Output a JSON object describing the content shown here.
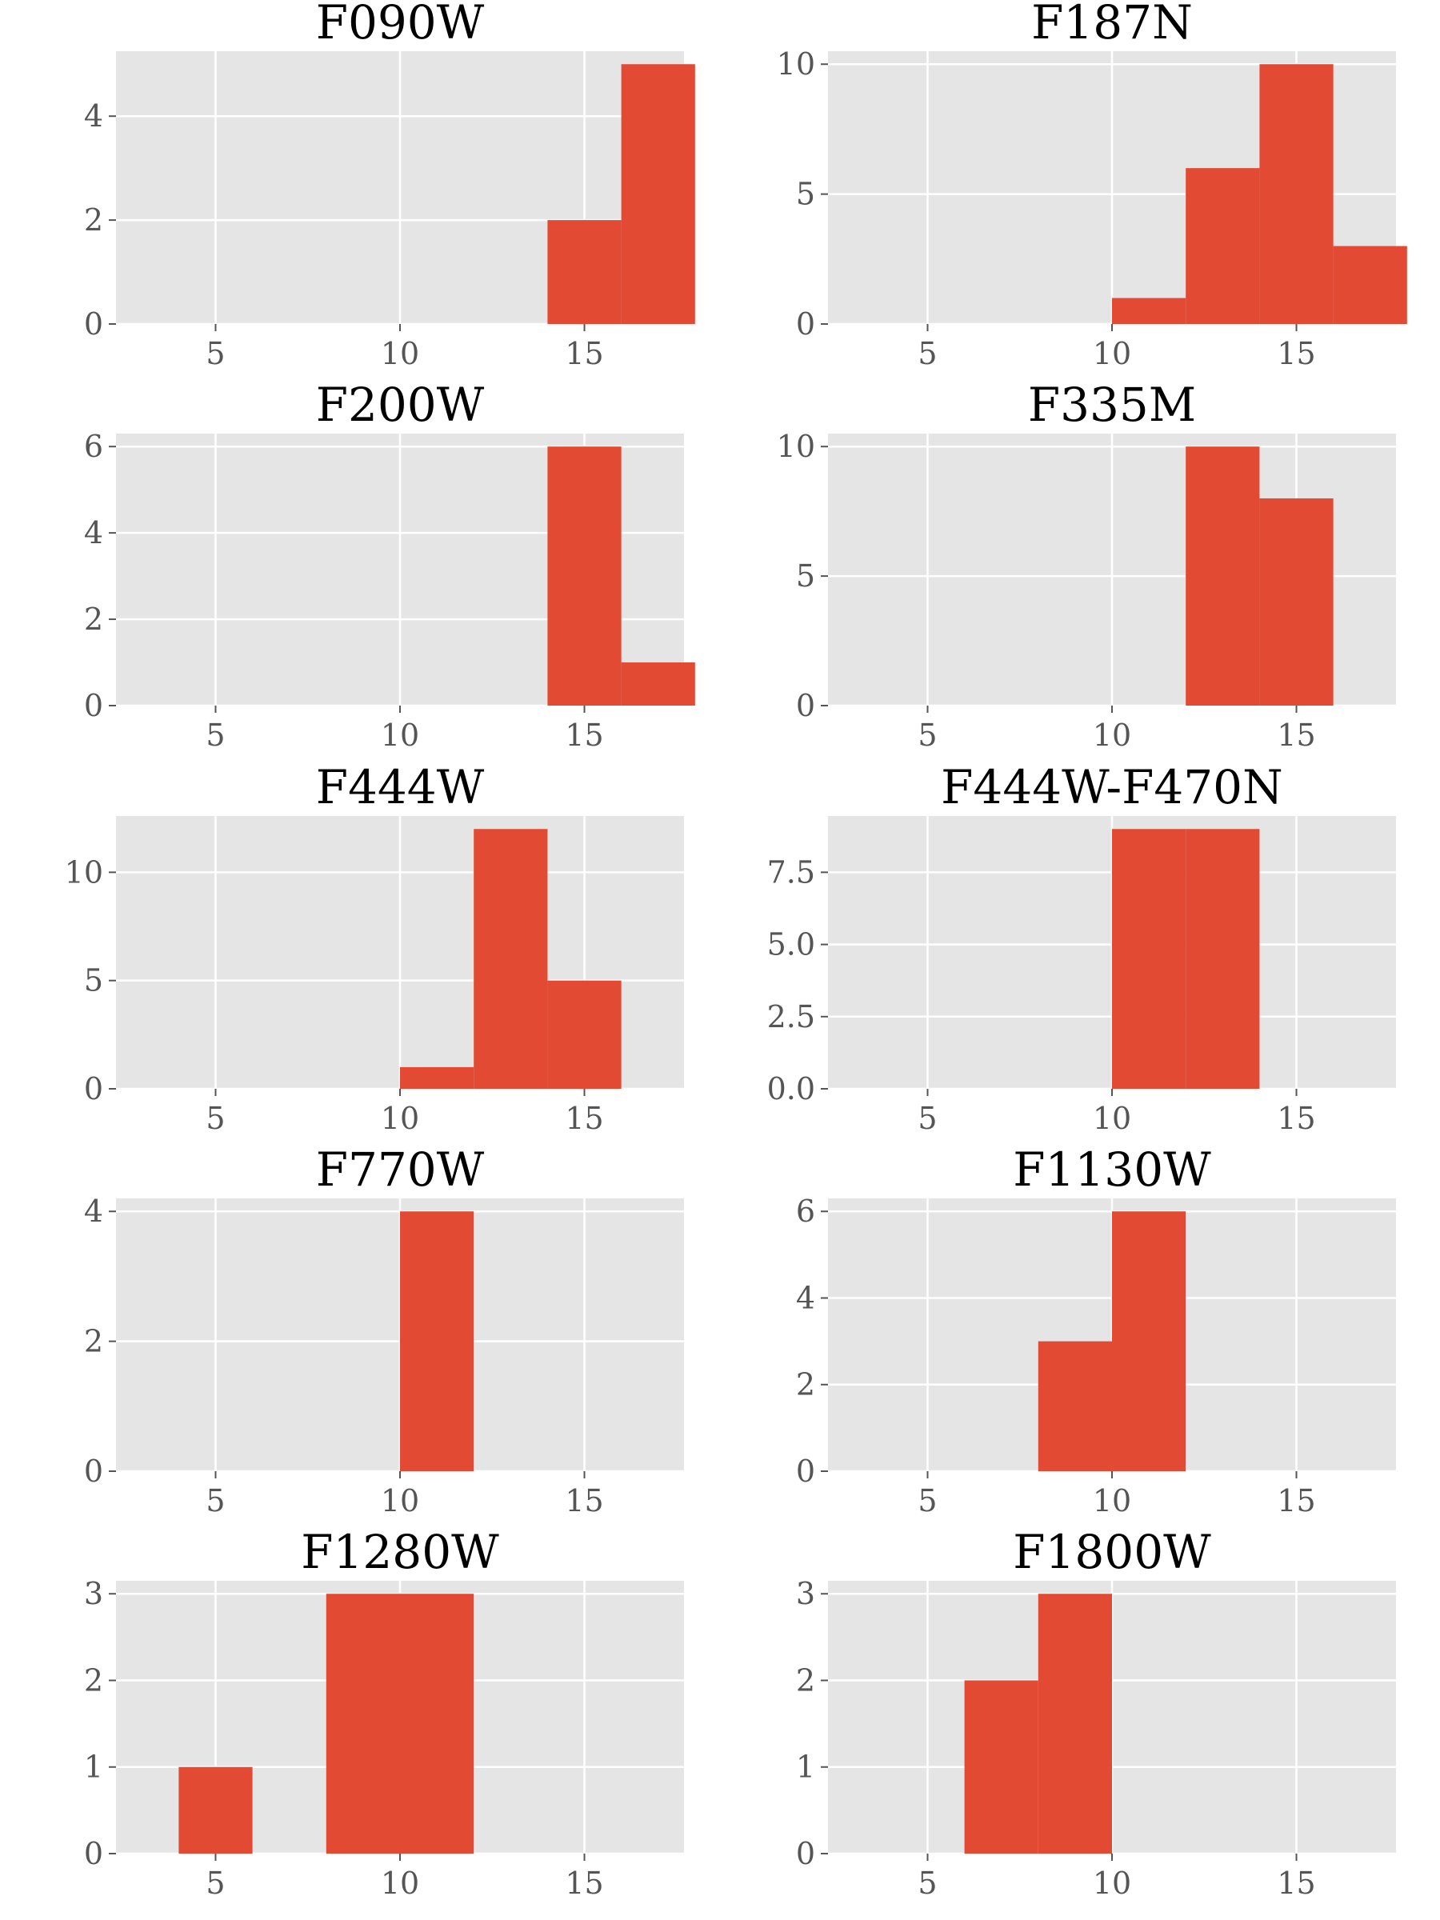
{
  "style": {
    "bar_color": "#E24A33",
    "panel_background": "#E5E5E5",
    "grid_color": "#FFFFFF",
    "tick_label_color": "#555555",
    "figure_background": "#FFFFFF"
  },
  "chart_data": [
    {
      "type": "histogram",
      "title": "F090W",
      "bin_edges": [
        4,
        6,
        8,
        10,
        12,
        14,
        16,
        18
      ],
      "counts": [
        0,
        0,
        0,
        0,
        0,
        2,
        5
      ],
      "xlim": [
        2.3,
        17.7
      ],
      "ylim": [
        0,
        5.25
      ],
      "xticks": [
        5,
        10,
        15
      ],
      "yticks": [
        0,
        2,
        4
      ],
      "ytick_labels": [
        "0",
        "2",
        "4"
      ],
      "grid": true
    },
    {
      "type": "histogram",
      "title": "F187N",
      "bin_edges": [
        4,
        6,
        8,
        10,
        12,
        14,
        16,
        18
      ],
      "counts": [
        0,
        0,
        0,
        1,
        6,
        10,
        3
      ],
      "xlim": [
        2.3,
        17.7
      ],
      "ylim": [
        0,
        10.5
      ],
      "xticks": [
        5,
        10,
        15
      ],
      "yticks": [
        0,
        5,
        10
      ],
      "ytick_labels": [
        "0",
        "5",
        "10"
      ],
      "grid": true
    },
    {
      "type": "histogram",
      "title": "F200W",
      "bin_edges": [
        4,
        6,
        8,
        10,
        12,
        14,
        16,
        18
      ],
      "counts": [
        0,
        0,
        0,
        0,
        0,
        6,
        1
      ],
      "xlim": [
        2.3,
        17.7
      ],
      "ylim": [
        0,
        6.3
      ],
      "xticks": [
        5,
        10,
        15
      ],
      "yticks": [
        0,
        2,
        4,
        6
      ],
      "ytick_labels": [
        "0",
        "2",
        "4",
        "6"
      ],
      "grid": true
    },
    {
      "type": "histogram",
      "title": "F335M",
      "bin_edges": [
        4,
        6,
        8,
        10,
        12,
        14,
        16,
        18
      ],
      "counts": [
        0,
        0,
        0,
        0,
        10,
        8,
        0
      ],
      "xlim": [
        2.3,
        17.7
      ],
      "ylim": [
        0,
        10.5
      ],
      "xticks": [
        5,
        10,
        15
      ],
      "yticks": [
        0,
        5,
        10
      ],
      "ytick_labels": [
        "0",
        "5",
        "10"
      ],
      "grid": true
    },
    {
      "type": "histogram",
      "title": "F444W",
      "bin_edges": [
        4,
        6,
        8,
        10,
        12,
        14,
        16,
        18
      ],
      "counts": [
        0,
        0,
        0,
        1,
        12,
        5,
        0
      ],
      "xlim": [
        2.3,
        17.7
      ],
      "ylim": [
        0,
        12.6
      ],
      "xticks": [
        5,
        10,
        15
      ],
      "yticks": [
        0,
        5,
        10
      ],
      "ytick_labels": [
        "0",
        "5",
        "10"
      ],
      "grid": true
    },
    {
      "type": "histogram",
      "title": "F444W-F470N",
      "bin_edges": [
        4,
        6,
        8,
        10,
        12,
        14,
        16,
        18
      ],
      "counts": [
        0,
        0,
        0,
        9,
        9,
        0,
        0
      ],
      "xlim": [
        2.3,
        17.7
      ],
      "ylim": [
        0,
        9.45
      ],
      "xticks": [
        5,
        10,
        15
      ],
      "yticks": [
        0,
        2.5,
        5,
        7.5
      ],
      "ytick_labels": [
        "0.0",
        "2.5",
        "5.0",
        "7.5"
      ],
      "grid": true
    },
    {
      "type": "histogram",
      "title": "F770W",
      "bin_edges": [
        4,
        6,
        8,
        10,
        12,
        14,
        16,
        18
      ],
      "counts": [
        0,
        0,
        0,
        4,
        0,
        0,
        0
      ],
      "xlim": [
        2.3,
        17.7
      ],
      "ylim": [
        0,
        4.2
      ],
      "xticks": [
        5,
        10,
        15
      ],
      "yticks": [
        0,
        2,
        4
      ],
      "ytick_labels": [
        "0",
        "2",
        "4"
      ],
      "grid": true
    },
    {
      "type": "histogram",
      "title": "F1130W",
      "bin_edges": [
        4,
        6,
        8,
        10,
        12,
        14,
        16,
        18
      ],
      "counts": [
        0,
        0,
        3,
        6,
        0,
        0,
        0
      ],
      "xlim": [
        2.3,
        17.7
      ],
      "ylim": [
        0,
        6.3
      ],
      "xticks": [
        5,
        10,
        15
      ],
      "yticks": [
        0,
        2,
        4,
        6
      ],
      "ytick_labels": [
        "0",
        "2",
        "4",
        "6"
      ],
      "grid": true
    },
    {
      "type": "histogram",
      "title": "F1280W",
      "bin_edges": [
        4,
        6,
        8,
        10,
        12,
        14,
        16,
        18
      ],
      "counts": [
        1,
        0,
        3,
        3,
        0,
        0,
        0
      ],
      "xlim": [
        2.3,
        17.7
      ],
      "ylim": [
        0,
        3.15
      ],
      "xticks": [
        5,
        10,
        15
      ],
      "yticks": [
        0,
        1,
        2,
        3
      ],
      "ytick_labels": [
        "0",
        "1",
        "2",
        "3"
      ],
      "grid": true
    },
    {
      "type": "histogram",
      "title": "F1800W",
      "bin_edges": [
        4,
        6,
        8,
        10,
        12,
        14,
        16,
        18
      ],
      "counts": [
        0,
        2,
        3,
        0,
        0,
        0,
        0
      ],
      "xlim": [
        2.3,
        17.7
      ],
      "ylim": [
        0,
        3.15
      ],
      "xticks": [
        5,
        10,
        15
      ],
      "yticks": [
        0,
        1,
        2,
        3
      ],
      "ytick_labels": [
        "0",
        "1",
        "2",
        "3"
      ],
      "grid": true
    }
  ]
}
